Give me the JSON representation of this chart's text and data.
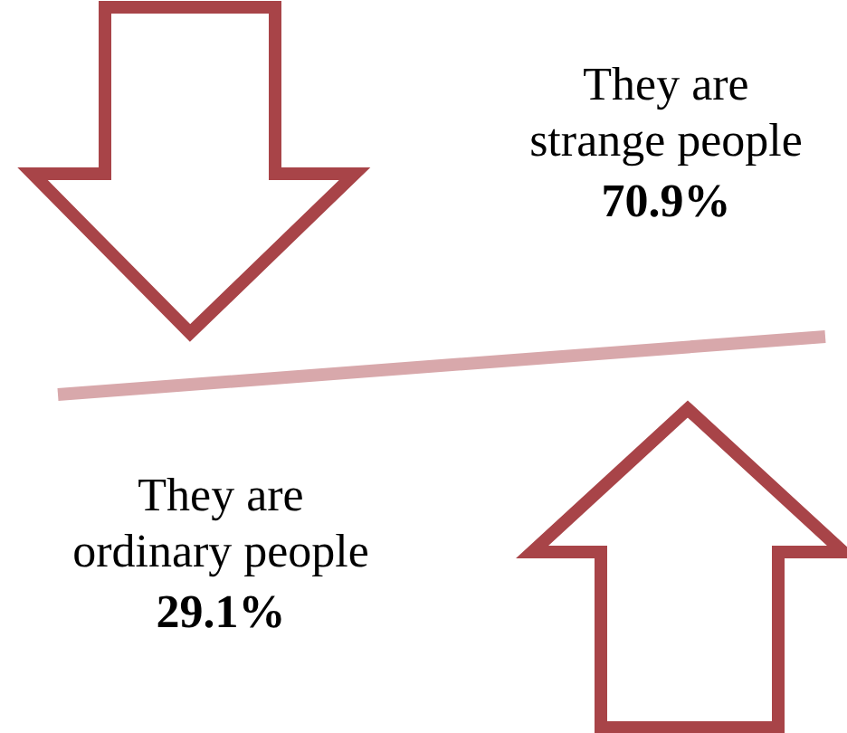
{
  "chart_data": {
    "type": "other",
    "categories": [
      "They are strange people",
      "They are ordinary people"
    ],
    "values": [
      70.9,
      29.1
    ],
    "value_labels": [
      "70.9%",
      "29.1%"
    ]
  }
}
